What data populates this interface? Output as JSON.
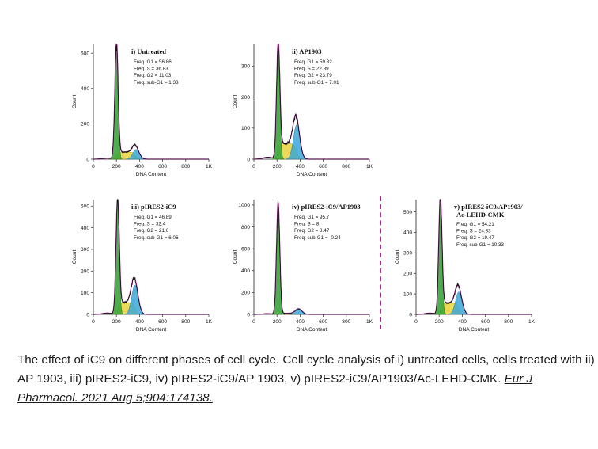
{
  "chart_data": [
    {
      "type": "area",
      "title": "i) Untreated",
      "xlabel": "DNA Content",
      "ylabel": "Count",
      "xlim": [
        0,
        1000
      ],
      "ylim": [
        0,
        650
      ],
      "x_ticks": [
        "0",
        "200",
        "400",
        "600",
        "800",
        "1K"
      ],
      "y_ticks": [
        0,
        200,
        400,
        600
      ],
      "stats": [
        "Freq. G1 = 56.86",
        "Freq. S = 36.83",
        "Freq. G2 = 11.03",
        "Freq. sub-G1 = 1.33"
      ],
      "peaks": {
        "g1_pos": 200,
        "g1_height": 630,
        "g2_pos": 370,
        "g2_height": 55,
        "s_level": 40
      }
    },
    {
      "type": "area",
      "title": "ii) AP1903",
      "xlabel": "DNA Content",
      "ylabel": "Count",
      "xlim": [
        0,
        1000
      ],
      "ylim": [
        0,
        370
      ],
      "x_ticks": [
        "0",
        "200",
        "400",
        "600",
        "800",
        "1K"
      ],
      "y_ticks": [
        0,
        100,
        200,
        300
      ],
      "stats": [
        "Freq. G1 = 59.32",
        "Freq. S = 22.89",
        "Freq. G2 = 23.79",
        "Freq. sub-G1 = 7.01"
      ],
      "peaks": {
        "g1_pos": 210,
        "g1_height": 350,
        "g2_pos": 370,
        "g2_height": 110,
        "s_level": 50
      }
    },
    {
      "type": "area",
      "title": "iii) pIRES2-iC9",
      "xlabel": "DNA Content",
      "ylabel": "Count",
      "xlim": [
        0,
        1000
      ],
      "ylim": [
        0,
        530
      ],
      "x_ticks": [
        "0",
        "200",
        "400",
        "600",
        "800",
        "1K"
      ],
      "y_ticks": [
        0,
        100,
        200,
        300,
        400,
        500
      ],
      "stats": [
        "Freq. G1 = 46.89",
        "Freq. S = 32.4",
        "Freq. G2 = 21.6",
        "Freq. sub-G1 = 6.06"
      ],
      "peaks": {
        "g1_pos": 210,
        "g1_height": 510,
        "g2_pos": 360,
        "g2_height": 135,
        "s_level": 55
      }
    },
    {
      "type": "area",
      "title": "iv) pIRES2-iC9/AP1903",
      "xlabel": "DNA Content",
      "ylabel": "Count",
      "xlim": [
        0,
        1000
      ],
      "ylim": [
        0,
        1050
      ],
      "x_ticks": [
        "0",
        "200",
        "400",
        "600",
        "800",
        "1K"
      ],
      "y_ticks": [
        0,
        200,
        400,
        600,
        800,
        1000
      ],
      "stats": [
        "Freq. G1 = 95.7",
        "Freq. S = 8",
        "Freq. G2 = 8.47",
        "Freq. sub-G1 = -0.24"
      ],
      "peaks": {
        "g1_pos": 210,
        "g1_height": 1000,
        "g2_pos": 390,
        "g2_height": 45,
        "s_level": 10
      }
    },
    {
      "type": "area",
      "title": "v) pIRES2-iC9/AP1903/",
      "title_line2": "Ac-LEHD-CMK",
      "xlabel": "DNA Content",
      "ylabel": "Count",
      "xlim": [
        0,
        1000
      ],
      "ylim": [
        0,
        560
      ],
      "x_ticks": [
        "0",
        "200",
        "400",
        "600",
        "800",
        "1K"
      ],
      "y_ticks": [
        0,
        100,
        200,
        300,
        400,
        500
      ],
      "stats": [
        "Freq. G1 = 54.21",
        "Freq. S = 24.83",
        "Freq. G2 = 19.47",
        "Freq. sub-G1 = 10.33"
      ],
      "peaks": {
        "g1_pos": 210,
        "g1_height": 540,
        "g2_pos": 370,
        "g2_height": 110,
        "s_level": 55
      }
    }
  ],
  "caption": {
    "text": "The effect of iC9 on different phases of cell cycle. Cell cycle analysis of i) untreated cells, cells treated with ii) AP 1903, iii) pIRES2-iC9, iv) pIRES2-iC9/AP 1903, v) pIRES2-iC9/AP1903/Ac-LEHD-CMK.",
    "citation": "Eur J Pharmacol. 2021 Aug 5;904:174138."
  },
  "colors": {
    "g1": "#3aa53a",
    "s": "#e8d23a",
    "g2": "#3aa7d8",
    "fit": "#c42fb5",
    "histogram": "#111111",
    "divider": "#a0308c"
  }
}
